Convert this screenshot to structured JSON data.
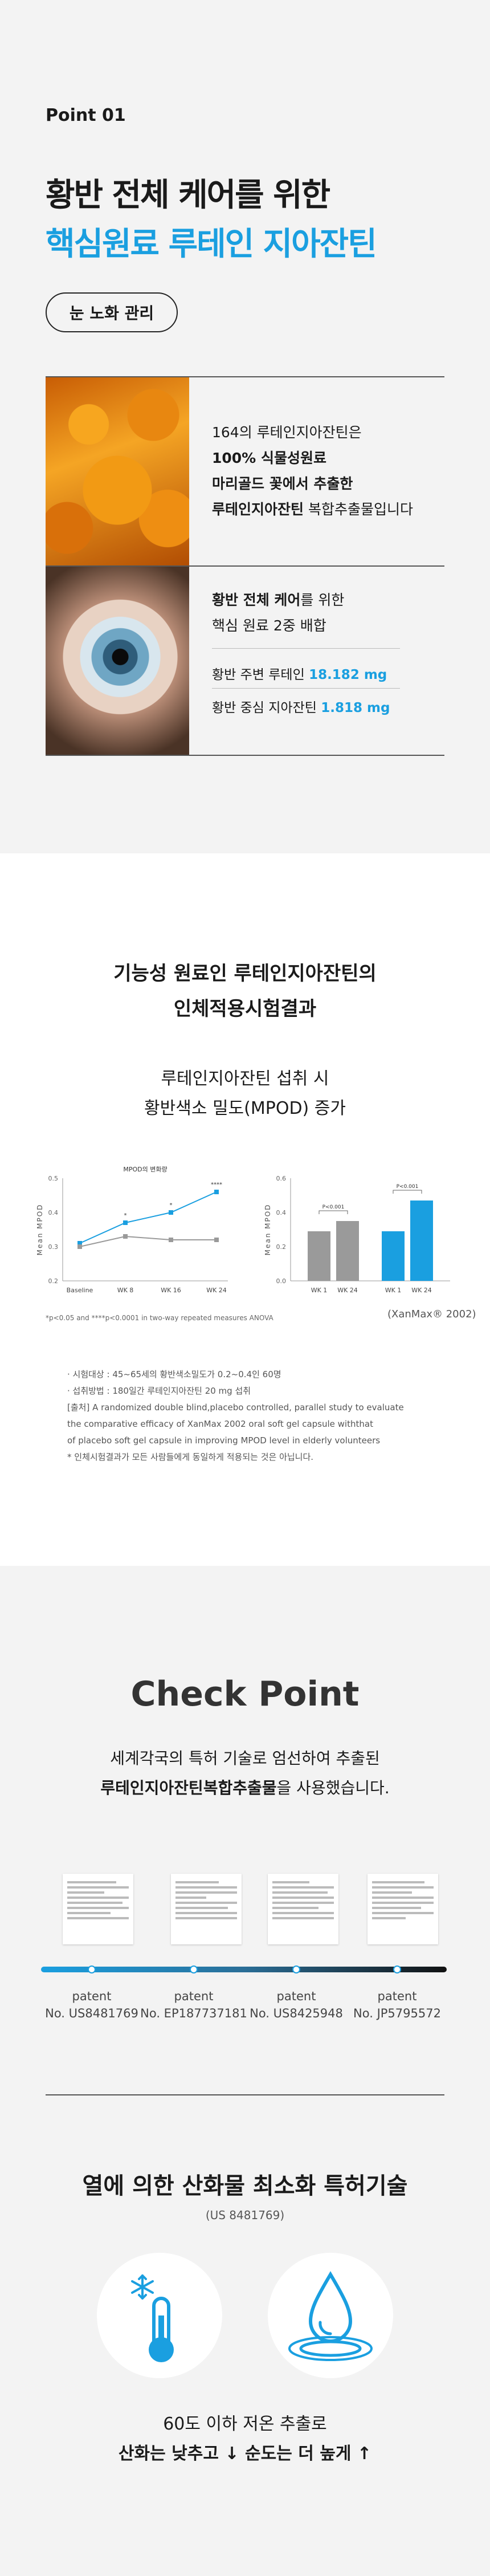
{
  "point": {
    "label": "Point 01",
    "headline_line1": "황반 전체 케어를 위한",
    "headline_line2": "핵심원료 루테인 지아잔틴",
    "pill": "눈 노화 관리"
  },
  "block1": {
    "line1": "164의 루테인지아잔틴은",
    "line2": "100% 식물성원료",
    "line3": "마리골드 꽃에서 추출한",
    "line4_bold": "루테인지아잔틴",
    "line4_rest": " 복합추출물입니다"
  },
  "block2": {
    "line1_bold": "황반 전체 케어",
    "line1_rest": "를 위한",
    "line2": "핵심 원료 2중 배합",
    "ing1_label": "황반 주변 루테인",
    "ing1_value": "18.182 mg",
    "ing2_label": "황반 중심 지아잔틴",
    "ing2_value": "1.818 mg"
  },
  "clinical": {
    "title_line1": "기능성 원료인 루테인지아잔틴의",
    "title_line2": "인체적용시험결과",
    "sub_line1": "루테인지아잔틴 섭취 시",
    "sub_line2": "황반색소 밀도(MPOD) 증가",
    "stat_note": "*p<0.05 and ****p<0.0001 in two-way repeated measures ANOVA",
    "source": "(XanMax® 2002)",
    "notes": [
      "· 시험대상 : 45~65세의 황반색소밀도가 0.2~0.4인 60명",
      "· 섭취방법 : 180일간 루테인지아잔틴 20 mg 섭취",
      "[출처] A randomized double blind,placebo controlled, parallel study to evaluate",
      "the comparative efficacy of XanMax 2002 oral soft gel capsule withthat",
      "of placebo soft gel capsule in improving MPOD level in elderly volunteers",
      "* 인체시험결과가 모든 사람들에게 동일하게 적용되는 것은 아닙니다."
    ]
  },
  "chart_data": [
    {
      "type": "line",
      "title": "MPOD의 변화량",
      "ylabel": "Mean MPOD",
      "ylim": [
        0.2,
        0.5
      ],
      "yticks": [
        "0.2",
        "0.3",
        "0.4",
        "0.5"
      ],
      "categories": [
        "Baseline",
        "WK 8",
        "WK 16",
        "WK 24"
      ],
      "markers": [
        "",
        "*",
        "*",
        "****"
      ],
      "series": [
        {
          "values": [
            0.31,
            0.37,
            0.4,
            0.46
          ],
          "color": "#1a9fe0"
        },
        {
          "values": [
            0.3,
            0.33,
            0.32,
            0.32
          ],
          "color": "#9a9a9a"
        }
      ]
    },
    {
      "type": "bar",
      "ylabel": "Mean MPOD",
      "ylim": [
        0.0,
        0.6
      ],
      "yticks": [
        "0.0",
        "0.2",
        "0.4",
        "0.6"
      ],
      "categories": [
        "WK 1",
        "WK 24",
        "WK 1",
        "WK 24"
      ],
      "values": [
        0.29,
        0.35,
        0.29,
        0.47
      ],
      "colors": [
        "#9a9a9a",
        "#9a9a9a",
        "#1a9fe0",
        "#1a9fe0"
      ],
      "annotations": [
        "P<0.001",
        "P<0.001"
      ]
    }
  ],
  "checkpoint": {
    "title": "Check Point",
    "sub_line1": "세계각국의 특허 기술로 엄선하여 추출된",
    "sub_line2_bold": "루테인지아잔틴복합추출물",
    "sub_line2_rest": "을 사용했습니다.",
    "patents": [
      {
        "kind": "patent",
        "number": "No. US8481769"
      },
      {
        "kind": "patent",
        "number": "No. EP187737181"
      },
      {
        "kind": "patent",
        "number": "No. US8425948"
      },
      {
        "kind": "patent",
        "number": "No. JP5795572"
      }
    ]
  },
  "heat": {
    "title": "열에 의한 산화물 최소화 특허기술",
    "number": "(US 8481769)",
    "line1": "60도 이하 저온 추출로",
    "line2": "산화는 낮추고 ↓ 순도는 더 높게 ↑"
  },
  "colors": {
    "accent": "#1a9fe0",
    "text": "#1a1a1a",
    "gray": "#9a9a9a"
  },
  "icons": [
    "snowflake-thermometer-icon",
    "water-drop-icon"
  ]
}
